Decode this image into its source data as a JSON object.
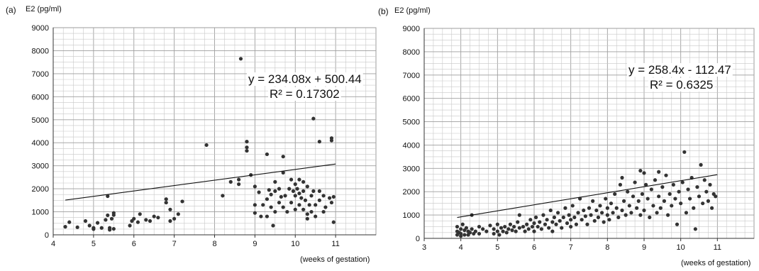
{
  "chart_data": [
    {
      "panel_label": "(a)",
      "type": "scatter",
      "ylabel": "E2 (pg/ml)",
      "xlabel": "(weeks of gestation)",
      "xlim": [
        4,
        12
      ],
      "ylim": [
        0,
        9000
      ],
      "xticks": [
        4,
        5,
        6,
        7,
        8,
        9,
        10,
        11
      ],
      "yticks": [
        0,
        1000,
        2000,
        3000,
        4000,
        5000,
        6000,
        7000,
        8000,
        9000
      ],
      "grid": true,
      "trendline": {
        "slope": 234.08,
        "intercept": 500.44,
        "x_range": [
          4.3,
          11.0
        ]
      },
      "equation": "y = 234.08x + 500.44",
      "r_squared": "R² = 0.17302",
      "points": [
        [
          4.3,
          350
        ],
        [
          4.4,
          550
        ],
        [
          4.6,
          330
        ],
        [
          4.8,
          600
        ],
        [
          4.9,
          400
        ],
        [
          5.0,
          250
        ],
        [
          5.0,
          300
        ],
        [
          5.1,
          520
        ],
        [
          5.2,
          300
        ],
        [
          5.3,
          650
        ],
        [
          5.35,
          850
        ],
        [
          5.35,
          1680
        ],
        [
          5.4,
          300
        ],
        [
          5.4,
          220
        ],
        [
          5.45,
          700
        ],
        [
          5.5,
          950
        ],
        [
          5.5,
          860
        ],
        [
          5.5,
          260
        ],
        [
          5.9,
          400
        ],
        [
          5.95,
          600
        ],
        [
          6.0,
          700
        ],
        [
          6.1,
          550
        ],
        [
          6.15,
          900
        ],
        [
          6.3,
          650
        ],
        [
          6.4,
          600
        ],
        [
          6.5,
          800
        ],
        [
          6.6,
          750
        ],
        [
          6.8,
          1400
        ],
        [
          6.8,
          1550
        ],
        [
          6.9,
          1100
        ],
        [
          6.9,
          600
        ],
        [
          7.0,
          700
        ],
        [
          7.1,
          900
        ],
        [
          7.2,
          1450
        ],
        [
          7.8,
          3900
        ],
        [
          8.2,
          1700
        ],
        [
          8.4,
          2300
        ],
        [
          8.6,
          2200
        ],
        [
          8.6,
          2400
        ],
        [
          8.65,
          7650
        ],
        [
          8.8,
          4050
        ],
        [
          8.8,
          3800
        ],
        [
          8.8,
          3650
        ],
        [
          8.9,
          2600
        ],
        [
          9.0,
          2100
        ],
        [
          9.0,
          1300
        ],
        [
          9.0,
          950
        ],
        [
          9.1,
          1850
        ],
        [
          9.15,
          800
        ],
        [
          9.2,
          1300
        ],
        [
          9.3,
          3500
        ],
        [
          9.3,
          1550
        ],
        [
          9.3,
          800
        ],
        [
          9.35,
          1950
        ],
        [
          9.4,
          1750
        ],
        [
          9.4,
          1200
        ],
        [
          9.45,
          400
        ],
        [
          9.5,
          1900
        ],
        [
          9.5,
          2300
        ],
        [
          9.5,
          1000
        ],
        [
          9.6,
          2000
        ],
        [
          9.6,
          1400
        ],
        [
          9.65,
          1650
        ],
        [
          9.7,
          3400
        ],
        [
          9.7,
          2700
        ],
        [
          9.7,
          1200
        ],
        [
          9.75,
          1700
        ],
        [
          9.8,
          1000
        ],
        [
          9.85,
          2000
        ],
        [
          9.9,
          2400
        ],
        [
          9.9,
          1400
        ],
        [
          9.95,
          1900
        ],
        [
          10.0,
          2200
        ],
        [
          10.0,
          1700
        ],
        [
          10.0,
          1100
        ],
        [
          10.05,
          2000
        ],
        [
          10.1,
          1800
        ],
        [
          10.1,
          2400
        ],
        [
          10.1,
          1300
        ],
        [
          10.15,
          1600
        ],
        [
          10.2,
          2300
        ],
        [
          10.2,
          1900
        ],
        [
          10.2,
          1100
        ],
        [
          10.25,
          1500
        ],
        [
          10.3,
          2100
        ],
        [
          10.3,
          900
        ],
        [
          10.3,
          700
        ],
        [
          10.35,
          1300
        ],
        [
          10.4,
          1700
        ],
        [
          10.4,
          1000
        ],
        [
          10.45,
          1900
        ],
        [
          10.45,
          5050
        ],
        [
          10.5,
          1300
        ],
        [
          10.5,
          800
        ],
        [
          10.6,
          4050
        ],
        [
          10.6,
          1900
        ],
        [
          10.6,
          1500
        ],
        [
          10.7,
          1700
        ],
        [
          10.7,
          1000
        ],
        [
          10.75,
          1200
        ],
        [
          10.85,
          1600
        ],
        [
          10.9,
          4200
        ],
        [
          10.9,
          4100
        ],
        [
          10.9,
          1400
        ],
        [
          10.95,
          1650
        ],
        [
          10.95,
          550
        ]
      ]
    },
    {
      "panel_label": "(b)",
      "type": "scatter",
      "ylabel": "E2 (pg/ml)",
      "xlabel": "(weeks of gestation)",
      "xlim": [
        3,
        12
      ],
      "ylim": [
        0,
        9000
      ],
      "xticks": [
        3,
        4,
        5,
        6,
        7,
        8,
        9,
        10,
        11
      ],
      "yticks": [
        0,
        1000,
        2000,
        3000,
        4000,
        5000,
        6000,
        7000,
        8000,
        9000
      ],
      "grid": true,
      "trendline": {
        "slope": 258.4,
        "intercept": -112.47,
        "x_range": [
          3.9,
          11.0
        ]
      },
      "equation": "y = 258.4x - 112.47",
      "r_squared": "R² = 0.6325",
      "points": [
        [
          3.9,
          500
        ],
        [
          3.9,
          300
        ],
        [
          3.9,
          150
        ],
        [
          3.95,
          250
        ],
        [
          4.0,
          400
        ],
        [
          4.0,
          200
        ],
        [
          4.0,
          100
        ],
        [
          4.05,
          600
        ],
        [
          4.1,
          350
        ],
        [
          4.1,
          150
        ],
        [
          4.15,
          450
        ],
        [
          4.2,
          300
        ],
        [
          4.2,
          150
        ],
        [
          4.25,
          250
        ],
        [
          4.3,
          400
        ],
        [
          4.3,
          1000
        ],
        [
          4.35,
          200
        ],
        [
          4.4,
          300
        ],
        [
          4.5,
          500
        ],
        [
          4.5,
          200
        ],
        [
          4.6,
          400
        ],
        [
          4.7,
          300
        ],
        [
          4.8,
          550
        ],
        [
          4.9,
          400
        ],
        [
          4.9,
          200
        ],
        [
          5.0,
          600
        ],
        [
          5.0,
          300
        ],
        [
          5.05,
          150
        ],
        [
          5.1,
          450
        ],
        [
          5.15,
          300
        ],
        [
          5.2,
          500
        ],
        [
          5.25,
          250
        ],
        [
          5.3,
          400
        ],
        [
          5.35,
          600
        ],
        [
          5.4,
          350
        ],
        [
          5.45,
          500
        ],
        [
          5.5,
          300
        ],
        [
          5.55,
          700
        ],
        [
          5.6,
          450
        ],
        [
          5.6,
          1000
        ],
        [
          5.7,
          500
        ],
        [
          5.75,
          300
        ],
        [
          5.8,
          600
        ],
        [
          5.85,
          400
        ],
        [
          5.9,
          800
        ],
        [
          5.95,
          500
        ],
        [
          6.0,
          650
        ],
        [
          6.0,
          300
        ],
        [
          6.05,
          900
        ],
        [
          6.1,
          500
        ],
        [
          6.15,
          700
        ],
        [
          6.2,
          400
        ],
        [
          6.25,
          1000
        ],
        [
          6.3,
          600
        ],
        [
          6.35,
          800
        ],
        [
          6.4,
          450
        ],
        [
          6.45,
          1200
        ],
        [
          6.5,
          700
        ],
        [
          6.5,
          300
        ],
        [
          6.55,
          900
        ],
        [
          6.6,
          600
        ],
        [
          6.65,
          1100
        ],
        [
          6.7,
          750
        ],
        [
          6.75,
          450
        ],
        [
          6.8,
          900
        ],
        [
          6.85,
          1300
        ],
        [
          6.9,
          650
        ],
        [
          6.95,
          1000
        ],
        [
          7.0,
          800
        ],
        [
          7.0,
          500
        ],
        [
          7.05,
          1400
        ],
        [
          7.1,
          900
        ],
        [
          7.15,
          600
        ],
        [
          7.2,
          1100
        ],
        [
          7.25,
          1700
        ],
        [
          7.3,
          800
        ],
        [
          7.35,
          1200
        ],
        [
          7.4,
          950
        ],
        [
          7.45,
          600
        ],
        [
          7.5,
          1300
        ],
        [
          7.55,
          1000
        ],
        [
          7.6,
          1600
        ],
        [
          7.65,
          750
        ],
        [
          7.7,
          1200
        ],
        [
          7.75,
          900
        ],
        [
          7.8,
          1400
        ],
        [
          7.85,
          1100
        ],
        [
          7.9,
          700
        ],
        [
          7.95,
          1700
        ],
        [
          8.0,
          1000
        ],
        [
          8.0,
          1300
        ],
        [
          8.05,
          800
        ],
        [
          8.1,
          1500
        ],
        [
          8.15,
          1100
        ],
        [
          8.2,
          1900
        ],
        [
          8.25,
          1300
        ],
        [
          8.3,
          900
        ],
        [
          8.35,
          2300
        ],
        [
          8.4,
          1200
        ],
        [
          8.4,
          2600
        ],
        [
          8.45,
          1600
        ],
        [
          8.5,
          1000
        ],
        [
          8.55,
          2000
        ],
        [
          8.6,
          1400
        ],
        [
          8.65,
          1100
        ],
        [
          8.7,
          1800
        ],
        [
          8.75,
          2400
        ],
        [
          8.8,
          1300
        ],
        [
          8.85,
          1600
        ],
        [
          8.9,
          1000
        ],
        [
          8.9,
          2900
        ],
        [
          8.95,
          1900
        ],
        [
          9.0,
          2800
        ],
        [
          9.0,
          1200
        ],
        [
          9.05,
          2300
        ],
        [
          9.1,
          1700
        ],
        [
          9.15,
          900
        ],
        [
          9.2,
          2100
        ],
        [
          9.25,
          1400
        ],
        [
          9.3,
          2500
        ],
        [
          9.35,
          1100
        ],
        [
          9.4,
          2850
        ],
        [
          9.4,
          1800
        ],
        [
          9.45,
          1300
        ],
        [
          9.5,
          2200
        ],
        [
          9.55,
          1600
        ],
        [
          9.6,
          2700
        ],
        [
          9.65,
          1000
        ],
        [
          9.7,
          1900
        ],
        [
          9.75,
          1400
        ],
        [
          9.8,
          2300
        ],
        [
          9.85,
          1700
        ],
        [
          9.9,
          600
        ],
        [
          9.95,
          2000
        ],
        [
          10.0,
          1500
        ],
        [
          10.05,
          2400
        ],
        [
          10.1,
          3700
        ],
        [
          10.15,
          1100
        ],
        [
          10.2,
          2100
        ],
        [
          10.25,
          1700
        ],
        [
          10.3,
          2600
        ],
        [
          10.35,
          1300
        ],
        [
          10.4,
          400
        ],
        [
          10.45,
          2200
        ],
        [
          10.5,
          1800
        ],
        [
          10.55,
          3150
        ],
        [
          10.6,
          1500
        ],
        [
          10.65,
          2500
        ],
        [
          10.7,
          2000
        ],
        [
          10.75,
          1600
        ],
        [
          10.8,
          2300
        ],
        [
          10.85,
          1300
        ],
        [
          10.9,
          1900
        ],
        [
          10.95,
          1800
        ]
      ]
    }
  ]
}
